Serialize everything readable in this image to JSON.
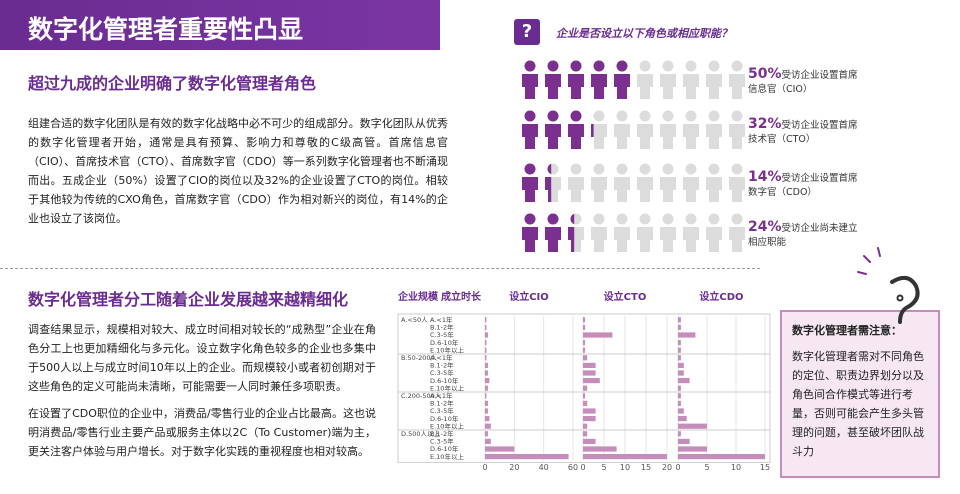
{
  "header": {
    "title": "数字化管理者重要性凸显"
  },
  "section1": {
    "title": "超过九成的企业明确了数字化管理者角色",
    "paragraph": "组建合适的数字化团队是有效的数字化战略中必不可少的组成部分。数字化团队从优秀的数字化管理者开始，通常是具有预算、影响力和尊敬的C级高管。首席信息官（CIO）、首席技术官（CTO）、首席数字官（CDO）等一系列数字化管理者也不断涌现而出。五成企业（50%）设置了CIO的岗位以及32%的企业设置了CTO的岗位。相较于其他较为传统的CXO角色，首席数字官（CDO）作为相对新兴的岗位，有14%的企业也设立了该岗位。"
  },
  "pictogram": {
    "icon": "?",
    "question": "企业是否设立以下角色或相应职能？",
    "filled_color": "#7b2f8e",
    "empty_color": "#dcdcdc",
    "rows": [
      {
        "value": 50,
        "label": "50%",
        "text": "受访企业设置首席信息官（CIO）"
      },
      {
        "value": 32,
        "label": "32%",
        "text": "受访企业设置首席技术官（CTO）"
      },
      {
        "value": 14,
        "label": "14%",
        "text": "受访企业设置首席数字官（CDO）"
      },
      {
        "value": 24,
        "label": "24%",
        "text": "受访企业尚未建立相应职能"
      }
    ]
  },
  "section2": {
    "title": "数字化管理者分工随着企业发展越来越精细化",
    "paragraphs": [
      "调查结果显示，规模相对较大、成立时间相对较长的“成熟型”企业在角色分工上也更加精细化与多元化。设立数字化角色较多的企业也多集中于500人以上与成立时间10年以上的企业。而规模较小或者初创期对于这些角色的定义可能尚未清晰，可能需要一人同时兼任多项职责。",
      "在设置了CDO职位的企业中，消费品/零售行业的企业占比最高。这也说明消费品/零售行业主要产品或服务主体以2C（To Customer)端为主，更关注客户体验与用户增长。对于数字化实践的重视程度也相对较高。"
    ]
  },
  "breakdown": {
    "type": "bar",
    "size_header": "企业规模",
    "age_header": "成立时长",
    "color": "#c58db9",
    "groups": [
      {
        "name": "A.<50人",
        "rows": [
          "A.<1年",
          "B.1-2年",
          "C.3-5年",
          "D.6-10年",
          "E.10年以上"
        ]
      },
      {
        "name": "B.50-200人",
        "rows": [
          "A.<1年",
          "B.1-2年",
          "C.3-5年",
          "D.6-10年",
          "E.10年以上"
        ]
      },
      {
        "name": "C.200-500人",
        "rows": [
          "A.<1年",
          "B.1-2年",
          "C.3-5年",
          "D.6-10年",
          "E.10年以上"
        ]
      },
      {
        "name": "D.500人以上",
        "rows": [
          "B.1-2年",
          "C.3-5年",
          "D.6-10年",
          "E.10年以上"
        ]
      }
    ],
    "panels": [
      {
        "title": "设立CIO",
        "xlim": [
          0,
          60
        ],
        "xticks": [
          0,
          20,
          40,
          60
        ],
        "values": [
          [
            1,
            1,
            2,
            1,
            1
          ],
          [
            1,
            2,
            2,
            3,
            2
          ],
          [
            1,
            2,
            2,
            3,
            4
          ],
          [
            2,
            4,
            20,
            57
          ]
        ]
      },
      {
        "title": "设立CTO",
        "xlim": [
          0,
          20
        ],
        "xticks": [
          0,
          5,
          10,
          15,
          20
        ],
        "values": [
          [
            0.5,
            0.5,
            7,
            0.5,
            0.5
          ],
          [
            1,
            3,
            3,
            4,
            1
          ],
          [
            0.5,
            1,
            3,
            3,
            1
          ],
          [
            1,
            3,
            8,
            20
          ]
        ]
      },
      {
        "title": "设立CDO",
        "xlim": [
          0,
          15
        ],
        "xticks": [
          0,
          5,
          10,
          15
        ],
        "values": [
          [
            0.5,
            0.5,
            3,
            0.5,
            0.5
          ],
          [
            0.5,
            1,
            1,
            2,
            0.5
          ],
          [
            0.5,
            0.5,
            1,
            1.5,
            5
          ],
          [
            0.5,
            2,
            5,
            15
          ]
        ]
      }
    ]
  },
  "note": {
    "title": "数字化管理者需注意：",
    "text": "数字化管理者需对不同角色的定位、职责边界划分以及角色间合作模式等进行考量，否则可能会产生多头管理的问题，甚至破坏团队战斗力"
  }
}
